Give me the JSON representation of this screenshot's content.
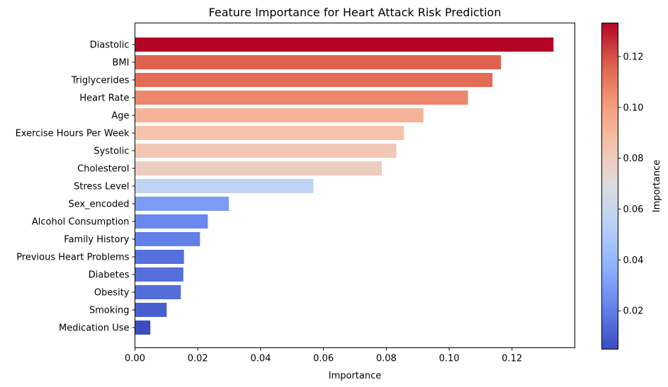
{
  "chart_data": {
    "type": "bar",
    "orientation": "horizontal",
    "title": "Feature Importance for Heart Attack Risk Prediction",
    "xlabel": "Importance",
    "ylabel": "",
    "xlim": [
      0,
      0.14
    ],
    "xticks": [
      0.0,
      0.02,
      0.04,
      0.06,
      0.08,
      0.1,
      0.12
    ],
    "xtick_labels": [
      "0.00",
      "0.02",
      "0.04",
      "0.06",
      "0.08",
      "0.10",
      "0.12"
    ],
    "categories": [
      "Diastolic",
      "BMI",
      "Triglycerides",
      "Heart Rate",
      "Age",
      "Exercise Hours Per Week",
      "Systolic",
      "Cholesterol",
      "Stress Level",
      "Sex_encoded",
      "Alcohol Consumption",
      "Family History",
      "Previous Heart Problems",
      "Diabetes",
      "Obesity",
      "Smoking",
      "Medication Use"
    ],
    "values": [
      0.1332,
      0.1165,
      0.1138,
      0.106,
      0.0918,
      0.0856,
      0.0832,
      0.0786,
      0.0568,
      0.0299,
      0.0232,
      0.0207,
      0.0156,
      0.0154,
      0.0146,
      0.0101,
      0.0049
    ],
    "colormap": "coolwarm",
    "colorbar": {
      "label": "Importance",
      "min": 0.0049,
      "max": 0.1332,
      "ticks": [
        0.02,
        0.04,
        0.06,
        0.08,
        0.1,
        0.12
      ],
      "tick_labels": [
        "0.02",
        "0.04",
        "0.06",
        "0.08",
        "0.10",
        "0.12"
      ]
    },
    "grid": false,
    "legend": "none"
  }
}
